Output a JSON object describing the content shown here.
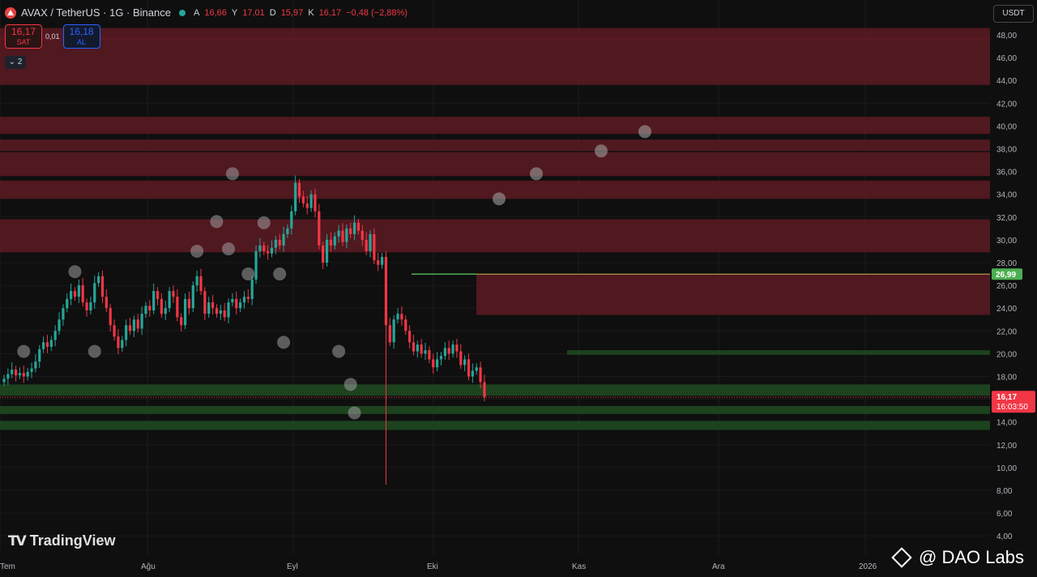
{
  "header": {
    "symbol": "AVAX / TetherUS · 1G · Binance",
    "open_label": "A",
    "open": "16,66",
    "high_label": "Y",
    "high": "17,01",
    "low_label": "D",
    "low": "15,97",
    "close_label": "K",
    "close": "16,17",
    "change": "−0,48 (−2,88%)"
  },
  "trade": {
    "sell_price": "16,17",
    "sell_label": "SAT",
    "spread": "0,01",
    "buy_price": "16,18",
    "buy_label": "AL"
  },
  "collapse_count": "2",
  "unit_selector": "USDT",
  "branding": {
    "tradingview": "TradingView",
    "watermark": "@ DAO Labs"
  },
  "colors": {
    "bull": "#26a69a",
    "bear": "#f23645",
    "resistance_zone": "#5c1a22",
    "support_zone": "#1e4620"
  },
  "chart_data": {
    "type": "candlestick",
    "title": "AVAX / TetherUS · 1G · Binance",
    "ylim": [
      4,
      49
    ],
    "y_ticks": [
      "48,00",
      "46,00",
      "44,00",
      "42,00",
      "40,00",
      "38,00",
      "36,00",
      "34,00",
      "32,00",
      "30,00",
      "28,00",
      "26,00",
      "24,00",
      "22,00",
      "20,00",
      "18,00",
      "16,00",
      "14,00",
      "12,00",
      "10,00",
      "8,00",
      "6,00",
      "4,00"
    ],
    "x_labels": [
      "Tem",
      "Ağu",
      "Eyl",
      "Eki",
      "Kas",
      "Ara",
      "2026"
    ],
    "last_price": "16,17",
    "countdown": "16:03:50",
    "marked_level": "26,99",
    "closes": [
      17.8,
      18.2,
      18.6,
      18.1,
      18.3,
      18.0,
      18.4,
      18.7,
      19.3,
      20.4,
      21.0,
      20.6,
      21.2,
      22.0,
      23.0,
      24.0,
      24.8,
      25.5,
      25.0,
      26.0,
      24.5,
      23.8,
      24.5,
      26.2,
      26.8,
      25.0,
      24.0,
      22.5,
      21.5,
      20.5,
      21.2,
      22.5,
      22.0,
      23.0,
      22.2,
      23.5,
      24.2,
      23.8,
      25.5,
      24.8,
      23.5,
      24.0,
      25.5,
      25.0,
      23.2,
      22.5,
      24.8,
      24.0,
      26.0,
      26.8,
      25.5,
      23.5,
      24.5,
      24.0,
      23.5,
      23.8,
      23.2,
      24.5,
      24.8,
      24.0,
      24.5,
      25.0,
      24.8,
      26.5,
      29.0,
      29.5,
      29.0,
      28.8,
      29.3,
      30.0,
      29.5,
      30.5,
      31.0,
      32.5,
      35.0,
      33.8,
      33.2,
      32.8,
      34.0,
      32.5,
      29.5,
      28.0,
      30.0,
      29.5,
      30.3,
      30.8,
      29.8,
      31.0,
      30.5,
      31.5,
      30.8,
      30.0,
      29.0,
      30.5,
      28.2,
      27.8,
      28.5,
      22.5,
      21.0,
      23.0,
      23.5,
      23.0,
      22.0,
      21.0,
      20.2,
      20.8,
      20.0,
      20.3,
      19.5,
      18.8,
      19.5,
      19.8,
      20.5,
      20.0,
      20.8,
      20.2,
      19.0,
      19.5,
      18.0,
      18.5,
      18.8,
      17.5,
      16.17
    ],
    "resistance_zones": [
      [
        47.5,
        48.6
      ],
      [
        43.6,
        47.8
      ],
      [
        39.3,
        40.8
      ],
      [
        37.8,
        38.8
      ],
      [
        35.6,
        37.7
      ],
      [
        33.6,
        35.2
      ],
      [
        28.9,
        31.8
      ],
      [
        23.4,
        27.0
      ]
    ],
    "support_zones": [
      [
        19.9,
        20.3
      ],
      [
        16.3,
        17.3
      ],
      [
        14.7,
        15.4
      ],
      [
        13.3,
        14.1
      ]
    ],
    "projection_points": [
      39.5,
      37.8,
      35.8,
      33.6
    ],
    "swing_markers": [
      [
        5,
        20.2
      ],
      [
        18,
        27.2
      ],
      [
        23,
        20.2
      ],
      [
        49,
        29.0
      ],
      [
        54,
        31.6
      ],
      [
        57,
        29.2
      ],
      [
        58,
        35.8
      ],
      [
        62,
        27.0
      ],
      [
        66,
        31.5
      ],
      [
        70,
        27.0
      ],
      [
        71,
        21.0
      ],
      [
        85,
        20.2
      ],
      [
        88,
        17.3
      ],
      [
        89,
        14.8
      ]
    ]
  }
}
